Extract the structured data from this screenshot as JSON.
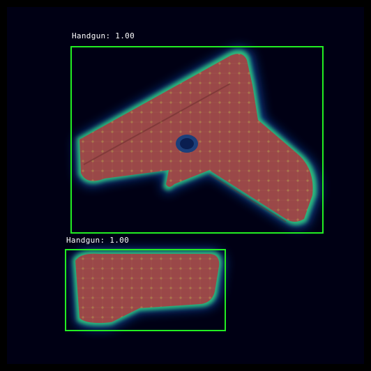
{
  "colors": {
    "background": "#000012",
    "box": "#22ee22",
    "label_text": "#ffffff",
    "heat_core": "#9b4a4a",
    "heat_edge_green": "#2fd07a",
    "heat_edge_blue": "#1a5cc0"
  },
  "detections": [
    {
      "label": "Handgun: 1.00",
      "class": "Handgun",
      "score": 1.0
    },
    {
      "label": "Handgun: 1.00",
      "class": "Handgun",
      "score": 1.0
    }
  ]
}
